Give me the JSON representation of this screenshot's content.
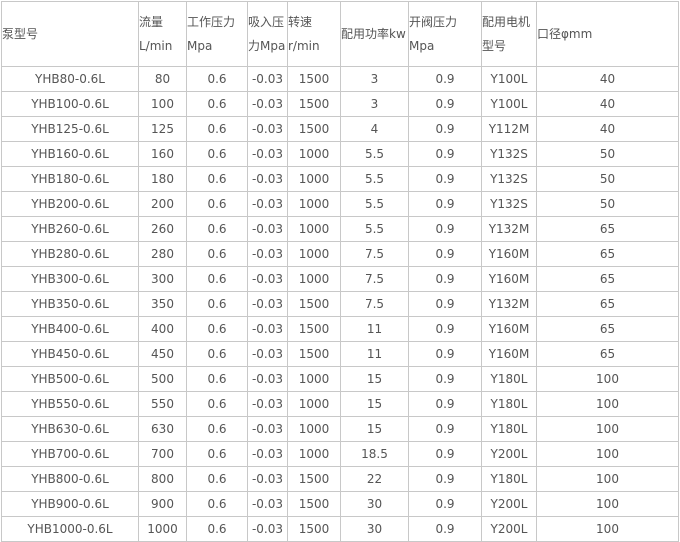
{
  "table": {
    "headers": [
      [
        "泵型号"
      ],
      [
        "流量",
        "L/min"
      ],
      [
        "工作压力",
        "Mpa"
      ],
      [
        "吸入压",
        "力Mpa"
      ],
      [
        "转速",
        "r/min"
      ],
      [
        "配用功率kw"
      ],
      [
        "开阀压力",
        "Mpa"
      ],
      [
        "配用电机",
        "型号"
      ],
      [
        "口径φmm"
      ]
    ],
    "rows": [
      [
        "YHB80-0.6L",
        "80",
        "0.6",
        "-0.03",
        "1500",
        "3",
        "0.9",
        "Y100L",
        "40"
      ],
      [
        "YHB100-0.6L",
        "100",
        "0.6",
        "-0.03",
        "1500",
        "3",
        "0.9",
        "Y100L",
        "40"
      ],
      [
        "YHB125-0.6L",
        "125",
        "0.6",
        "-0.03",
        "1500",
        "4",
        "0.9",
        "Y112M",
        "40"
      ],
      [
        "YHB160-0.6L",
        "160",
        "0.6",
        "-0.03",
        "1000",
        "5.5",
        "0.9",
        "Y132S",
        "50"
      ],
      [
        "YHB180-0.6L",
        "180",
        "0.6",
        "-0.03",
        "1000",
        "5.5",
        "0.9",
        "Y132S",
        "50"
      ],
      [
        "YHB200-0.6L",
        "200",
        "0.6",
        "-0.03",
        "1000",
        "5.5",
        "0.9",
        "Y132S",
        "50"
      ],
      [
        "YHB260-0.6L",
        "260",
        "0.6",
        "-0.03",
        "1000",
        "5.5",
        "0.9",
        "Y132M",
        "65"
      ],
      [
        "YHB280-0.6L",
        "280",
        "0.6",
        "-0.03",
        "1000",
        "7.5",
        "0.9",
        "Y160M",
        "65"
      ],
      [
        "YHB300-0.6L",
        "300",
        "0.6",
        "-0.03",
        "1000",
        "7.5",
        "0.9",
        "Y160M",
        "65"
      ],
      [
        "YHB350-0.6L",
        "350",
        "0.6",
        "-0.03",
        "1500",
        "7.5",
        "0.9",
        "Y132M",
        "65"
      ],
      [
        "YHB400-0.6L",
        "400",
        "0.6",
        "-0.03",
        "1500",
        "11",
        "0.9",
        "Y160M",
        "65"
      ],
      [
        "YHB450-0.6L",
        "450",
        "0.6",
        "-0.03",
        "1500",
        "11",
        "0.9",
        "Y160M",
        "65"
      ],
      [
        "YHB500-0.6L",
        "500",
        "0.6",
        "-0.03",
        "1000",
        "15",
        "0.9",
        "Y180L",
        "100"
      ],
      [
        "YHB550-0.6L",
        "550",
        "0.6",
        "-0.03",
        "1000",
        "15",
        "0.9",
        "Y180L",
        "100"
      ],
      [
        "YHB630-0.6L",
        "630",
        "0.6",
        "-0.03",
        "1000",
        "15",
        "0.9",
        "Y180L",
        "100"
      ],
      [
        "YHB700-0.6L",
        "700",
        "0.6",
        "-0.03",
        "1000",
        "18.5",
        "0.9",
        "Y200L",
        "100"
      ],
      [
        "YHB800-0.6L",
        "800",
        "0.6",
        "-0.03",
        "1500",
        "22",
        "0.9",
        "Y180L",
        "100"
      ],
      [
        "YHB900-0.6L",
        "900",
        "0.6",
        "-0.03",
        "1500",
        "30",
        "0.9",
        "Y200L",
        "100"
      ],
      [
        "YHB1000-0.6L",
        "1000",
        "0.6",
        "-0.03",
        "1500",
        "30",
        "0.9",
        "Y200L",
        "100"
      ]
    ]
  }
}
